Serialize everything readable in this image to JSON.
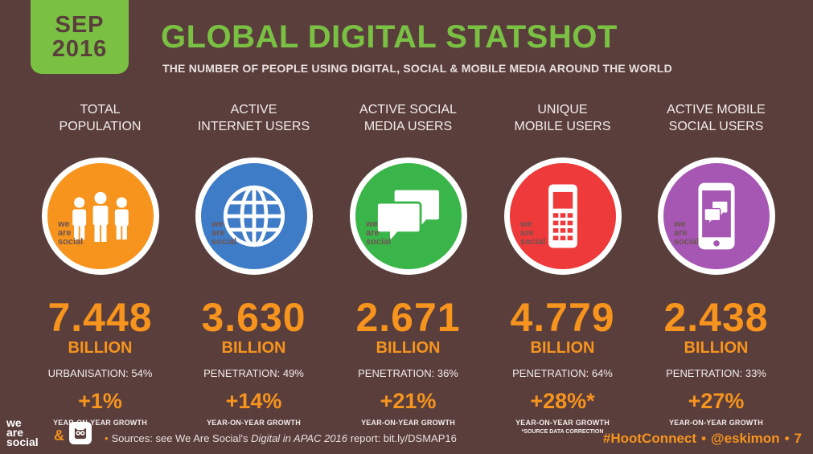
{
  "header": {
    "date_month": "SEP",
    "date_year": "2016",
    "title": "GLOBAL DIGITAL STATSHOT",
    "subtitle": "THE NUMBER OF PEOPLE USING DIGITAL, SOCIAL & MOBILE MEDIA AROUND THE WORLD"
  },
  "stats": [
    {
      "label_line1": "TOTAL",
      "label_line2": "POPULATION",
      "icon": "people-icon",
      "color": "#f7941d",
      "value": "7.448",
      "unit": "BILLION",
      "detail": "URBANISATION: 54%",
      "growth": "+1%",
      "growth_label": "YEAR-ON-YEAR GROWTH",
      "note": ""
    },
    {
      "label_line1": "ACTIVE",
      "label_line2": "INTERNET USERS",
      "icon": "globe-icon",
      "color": "#3e7cc7",
      "value": "3.630",
      "unit": "BILLION",
      "detail": "PENETRATION: 49%",
      "growth": "+14%",
      "growth_label": "YEAR-ON-YEAR GROWTH",
      "note": ""
    },
    {
      "label_line1": "ACTIVE SOCIAL",
      "label_line2": "MEDIA USERS",
      "icon": "speech-bubbles-icon",
      "color": "#3ab54a",
      "value": "2.671",
      "unit": "BILLION",
      "detail": "PENETRATION: 36%",
      "growth": "+21%",
      "growth_label": "YEAR-ON-YEAR GROWTH",
      "note": ""
    },
    {
      "label_line1": "UNIQUE",
      "label_line2": "MOBILE USERS",
      "icon": "mobile-phone-icon",
      "color": "#ee3a3a",
      "value": "4.779",
      "unit": "BILLION",
      "detail": "PENETRATION: 64%",
      "growth": "+28%*",
      "growth_label": "YEAR-ON-YEAR GROWTH",
      "note": "*SOURCE DATA CORRECTION"
    },
    {
      "label_line1": "ACTIVE MOBILE",
      "label_line2": "SOCIAL USERS",
      "icon": "smartphone-chat-icon",
      "color": "#a657b3",
      "value": "2.438",
      "unit": "BILLION",
      "detail": "PENETRATION: 33%",
      "growth": "+27%",
      "growth_label": "YEAR-ON-YEAR GROWTH",
      "note": ""
    }
  ],
  "watermark": {
    "line1": "we",
    "line2": "are",
    "line3": "social"
  },
  "footer": {
    "logo_line1": "we",
    "logo_line2": "are",
    "logo_line3": "social",
    "ampersand": "&",
    "bullet": "•",
    "sources_prefix": "Sources: see We Are Social's ",
    "sources_report": "Digital in APAC 2016",
    "sources_suffix": " report: bit.ly/DSMAP16",
    "hashtag": "#HootConnect",
    "separator": "•",
    "handle": "@eskimon",
    "page_number": "7"
  }
}
